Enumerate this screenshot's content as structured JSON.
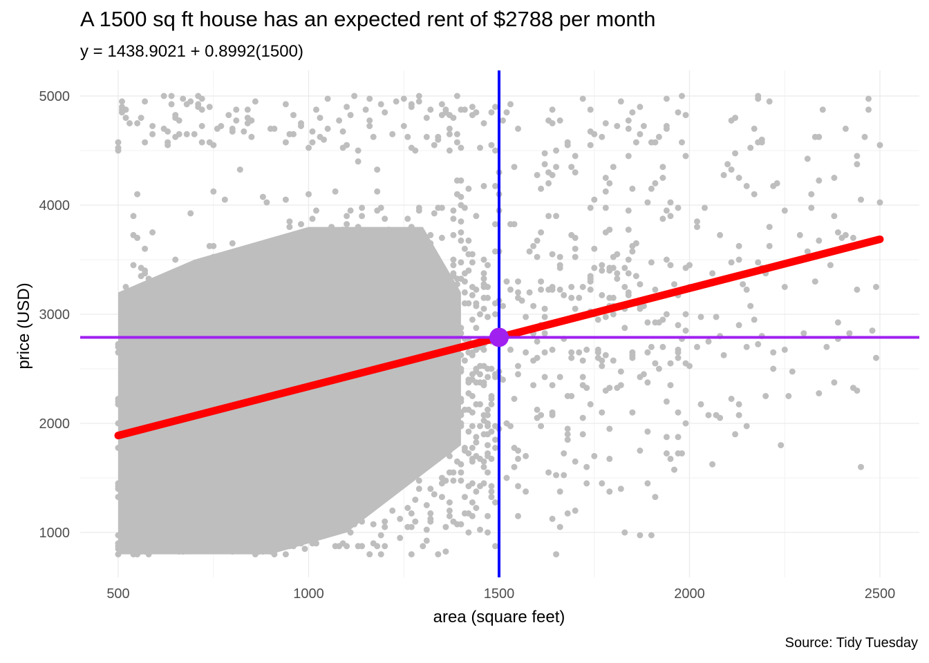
{
  "chart_data": {
    "type": "scatter",
    "title": "A 1500 sq ft house has an expected rent of $2788 per month",
    "subtitle": "y = 1438.9021 + 0.8992(1500)",
    "caption": "Source: Tidy Tuesday",
    "xlabel": "area (square feet)",
    "ylabel": "price (USD)",
    "xlim": [
      410,
      2600
    ],
    "ylim": [
      600,
      5200
    ],
    "x_ticks": [
      "500",
      "1000",
      "1500",
      "2000",
      "2500"
    ],
    "y_ticks": [
      "1000",
      "2000",
      "3000",
      "4000",
      "5000"
    ],
    "grid": true,
    "points_color": "#bebebe",
    "points_description": "dense cloud of rental listings, area 500–2500 sq ft, price 800–5000 USD",
    "regression_line": {
      "intercept": 1438.9021,
      "slope": 0.8992,
      "x_range": [
        500,
        2500
      ],
      "color": "#ff0000"
    },
    "vline": {
      "x": 1500,
      "color": "#0000ff"
    },
    "hline": {
      "y": 2788,
      "color": "#a020f0"
    },
    "highlight_point": {
      "x": 1500,
      "y": 2788,
      "color": "#a020f0"
    }
  }
}
